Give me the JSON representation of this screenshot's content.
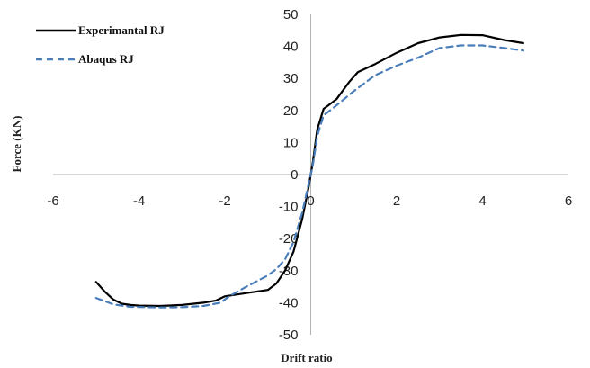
{
  "chart_data": {
    "type": "line",
    "xlabel": "Drift ratio",
    "ylabel": "Force (KN)",
    "xlim": [
      -6,
      6
    ],
    "ylim": [
      -50,
      50
    ],
    "x_ticks": [
      -6,
      -4,
      -2,
      0,
      2,
      4,
      6
    ],
    "y_ticks": [
      -50,
      -40,
      -30,
      -20,
      -10,
      0,
      10,
      20,
      30,
      40,
      50
    ],
    "grid": false,
    "legend_position": "top-left",
    "series": [
      {
        "name": "Experimantal RJ",
        "color": "#000000",
        "dash": "solid",
        "points": [
          [
            -5.0,
            -33.5
          ],
          [
            -4.8,
            -36.5
          ],
          [
            -4.6,
            -39.0
          ],
          [
            -4.4,
            -40.3
          ],
          [
            -4.2,
            -40.7
          ],
          [
            -4.0,
            -40.9
          ],
          [
            -3.5,
            -41.0
          ],
          [
            -3.0,
            -40.7
          ],
          [
            -2.5,
            -40.0
          ],
          [
            -2.2,
            -39.3
          ],
          [
            -2.0,
            -38.0
          ],
          [
            -1.5,
            -37.0
          ],
          [
            -1.0,
            -36.0
          ],
          [
            -0.8,
            -34.0
          ],
          [
            -0.6,
            -30.0
          ],
          [
            -0.4,
            -24.0
          ],
          [
            -0.2,
            -14.0
          ],
          [
            -0.05,
            -4.0
          ],
          [
            0.05,
            4.0
          ],
          [
            0.15,
            14.0
          ],
          [
            0.3,
            20.5
          ],
          [
            0.4,
            21.5
          ],
          [
            0.6,
            23.5
          ],
          [
            0.9,
            29.0
          ],
          [
            1.1,
            32.0
          ],
          [
            1.5,
            34.5
          ],
          [
            2.0,
            38.0
          ],
          [
            2.5,
            41.0
          ],
          [
            3.0,
            42.8
          ],
          [
            3.5,
            43.6
          ],
          [
            4.0,
            43.5
          ],
          [
            4.5,
            42.0
          ],
          [
            4.95,
            41.0
          ]
        ]
      },
      {
        "name": "Abaqus RJ",
        "color": "#4a7ebb",
        "dash": "dashed",
        "points": [
          [
            -5.0,
            -38.5
          ],
          [
            -4.6,
            -40.5
          ],
          [
            -4.2,
            -41.3
          ],
          [
            -3.5,
            -41.5
          ],
          [
            -3.0,
            -41.4
          ],
          [
            -2.5,
            -41.0
          ],
          [
            -2.1,
            -40.0
          ],
          [
            -1.9,
            -38.0
          ],
          [
            -1.5,
            -35.0
          ],
          [
            -1.0,
            -31.5
          ],
          [
            -0.8,
            -29.5
          ],
          [
            -0.6,
            -26.5
          ],
          [
            -0.4,
            -21.0
          ],
          [
            -0.2,
            -12.0
          ],
          [
            -0.05,
            -3.0
          ],
          [
            0.05,
            3.0
          ],
          [
            0.15,
            12.0
          ],
          [
            0.3,
            18.5
          ],
          [
            0.5,
            20.5
          ],
          [
            1.0,
            26.0
          ],
          [
            1.5,
            31.0
          ],
          [
            2.0,
            34.0
          ],
          [
            2.5,
            36.5
          ],
          [
            3.0,
            39.5
          ],
          [
            3.5,
            40.3
          ],
          [
            4.0,
            40.3
          ],
          [
            4.5,
            39.5
          ],
          [
            4.95,
            38.7
          ]
        ]
      }
    ]
  }
}
